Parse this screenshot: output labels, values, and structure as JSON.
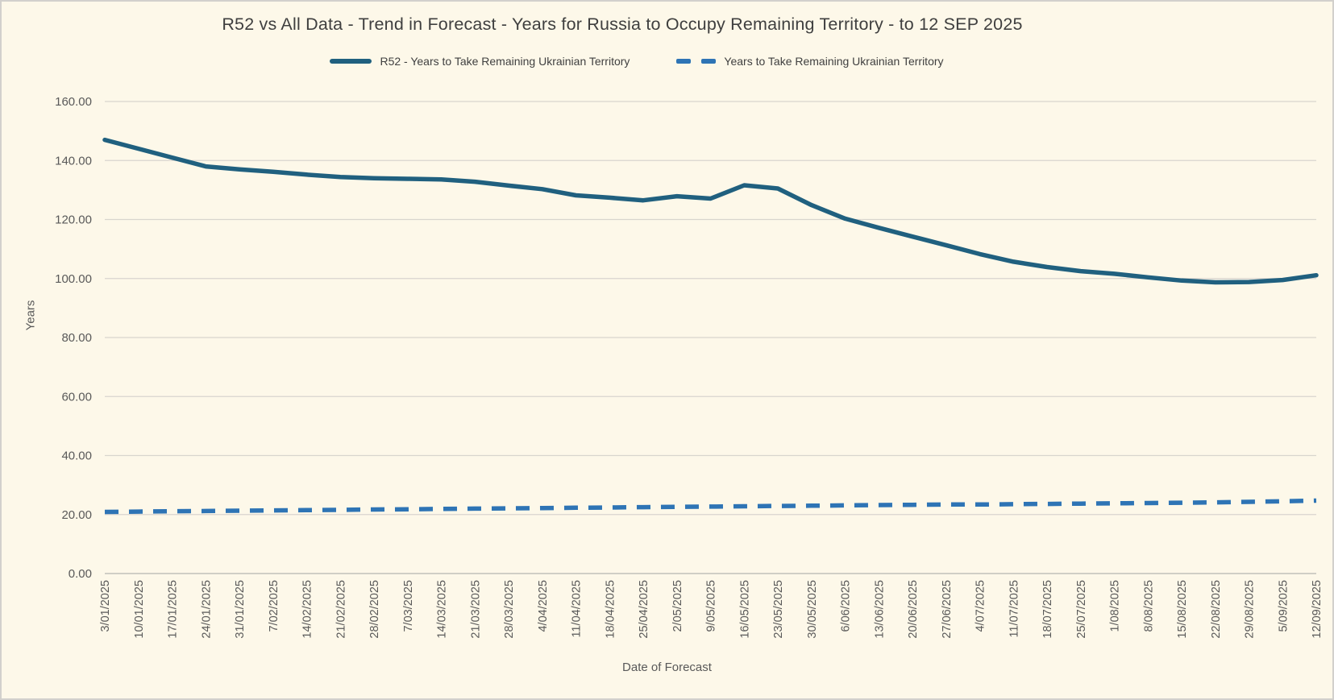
{
  "title": "R52 vs All Data  - Trend in Forecast - Years for Russia to Occupy Remaining Territory - to 12 SEP 2025",
  "colors": {
    "background": "#FDF8E9",
    "frame_border": "#D2D0CC",
    "gridline": "#D8D5CE",
    "tick_text": "#595959",
    "title_text": "#3F3F3F",
    "r52_line": "#20607F",
    "alldata_line": "#2E74B5"
  },
  "chart_data": {
    "type": "line",
    "title": "R52 vs All Data  - Trend in Forecast - Years for Russia to Occupy Remaining Territory - to 12 SEP 2025",
    "xlabel": "Date of Forecast",
    "ylabel": "Years",
    "ylim": [
      0,
      160
    ],
    "y_tick_step": 20,
    "y_tick_labels": [
      "0.00",
      "20.00",
      "40.00",
      "60.00",
      "80.00",
      "100.00",
      "120.00",
      "140.00",
      "160.00"
    ],
    "grid": "horizontal",
    "legend_position": "top",
    "x": [
      "3/01/2025",
      "10/01/2025",
      "17/01/2025",
      "24/01/2025",
      "31/01/2025",
      "7/02/2025",
      "14/02/2025",
      "21/02/2025",
      "28/02/2025",
      "7/03/2025",
      "14/03/2025",
      "21/03/2025",
      "28/03/2025",
      "4/04/2025",
      "11/04/2025",
      "18/04/2025",
      "25/04/2025",
      "2/05/2025",
      "9/05/2025",
      "16/05/2025",
      "23/05/2025",
      "30/05/2025",
      "6/06/2025",
      "13/06/2025",
      "20/06/2025",
      "27/06/2025",
      "4/07/2025",
      "11/07/2025",
      "18/07/2025",
      "25/07/2025",
      "1/08/2025",
      "8/08/2025",
      "15/08/2025",
      "22/08/2025",
      "29/08/2025",
      "5/09/2025",
      "12/09/2025"
    ],
    "series": [
      {
        "name": "R52 - Years to Take Remaining Ukrainian Territory",
        "style": "solid",
        "color": "#20607F",
        "values": [
          147.0,
          144.0,
          141.0,
          138.0,
          137.0,
          136.2,
          135.2,
          134.4,
          134.0,
          133.8,
          133.6,
          132.8,
          131.5,
          130.3,
          128.2,
          127.4,
          126.5,
          127.9,
          127.1,
          131.6,
          130.5,
          124.9,
          120.3,
          117.2,
          114.2,
          111.3,
          108.3,
          105.7,
          103.9,
          102.5,
          101.6,
          100.4,
          99.3,
          98.7,
          98.8,
          99.5,
          101.1
        ]
      },
      {
        "name": "Years to Take Remaining Ukrainian Territory",
        "style": "dashed",
        "color": "#2E74B5",
        "values": [
          20.9,
          21.0,
          21.1,
          21.2,
          21.3,
          21.4,
          21.5,
          21.6,
          21.7,
          21.8,
          21.9,
          22.0,
          22.1,
          22.2,
          22.3,
          22.4,
          22.5,
          22.6,
          22.7,
          22.8,
          22.9,
          23.0,
          23.1,
          23.2,
          23.3,
          23.4,
          23.4,
          23.5,
          23.6,
          23.7,
          23.8,
          23.9,
          24.0,
          24.1,
          24.3,
          24.5,
          24.7
        ]
      }
    ]
  }
}
